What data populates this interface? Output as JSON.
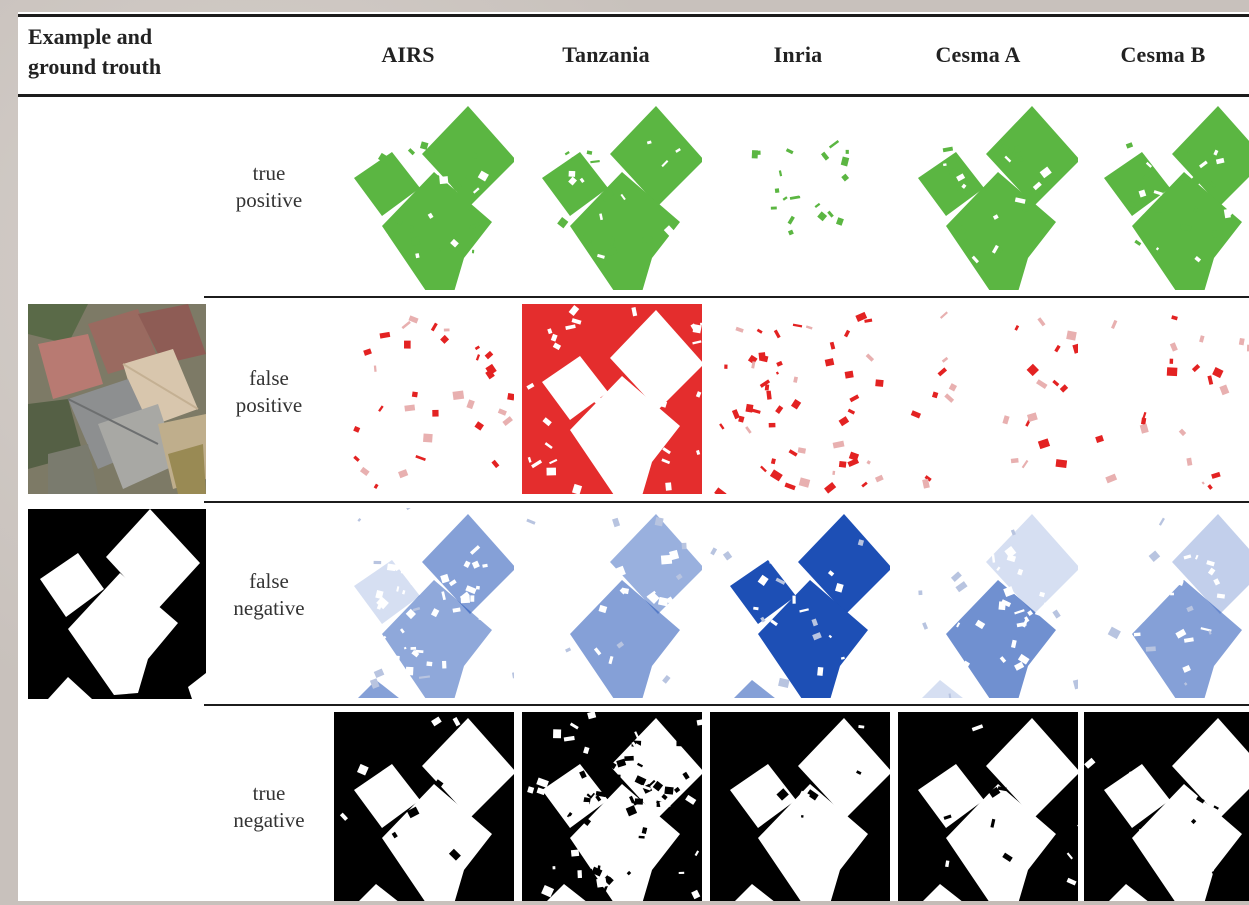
{
  "header": {
    "col0_line1": "Example and",
    "col0_line2": "ground trouth",
    "columns": [
      "AIRS",
      "Tanzania",
      "Inria",
      "Cesma A",
      "Cesma B"
    ]
  },
  "rows": [
    {
      "line1": "true",
      "line2": "positive",
      "color": "#5bb642",
      "bg": "#ffffff"
    },
    {
      "line1": "false",
      "line2": "positive",
      "color": "#e32222",
      "bg": "#ffffff"
    },
    {
      "line1": "false",
      "line2": "negative",
      "color": "#1d4fb5",
      "bg": "#ffffff"
    },
    {
      "line1": "true",
      "line2": "negative",
      "color": "#ffffff",
      "bg": "#000000"
    }
  ],
  "side_images": [
    "aerial-photo",
    "ground-truth-mask"
  ],
  "colors": {
    "true_positive": "#5bb642",
    "false_positive": "#e32222",
    "false_negative": "#1d4fb5",
    "mask_bg": "#000000",
    "mask_fg": "#ffffff"
  }
}
